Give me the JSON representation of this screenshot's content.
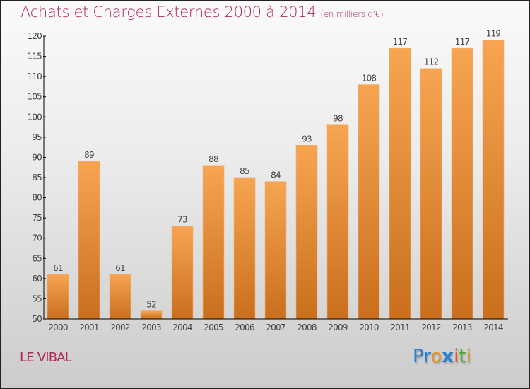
{
  "header": {
    "title": "Achats et Charges Externes 2000 à 2014",
    "unit": "(en milliers d'€)"
  },
  "footer": {
    "commune": "LE VIBAL",
    "logo": {
      "letters": [
        {
          "char": "P",
          "color": "#2a7fd4"
        },
        {
          "char": "r",
          "color": "#2a7fd4"
        },
        {
          "char": "o",
          "color": "#e8901e"
        },
        {
          "char": "x",
          "color": "#2a7fd4"
        },
        {
          "char": "i",
          "color": "#e8502a"
        },
        {
          "char": "t",
          "color": "#4aa83a"
        },
        {
          "char": "i",
          "color": "#e8901e"
        }
      ]
    }
  },
  "colors": {
    "title": "#b0285a",
    "bar_top": "#f7a552",
    "bar_bottom": "#c96f1e",
    "axis": "#000000",
    "label": "#444444"
  },
  "chart_data": {
    "type": "bar",
    "title": "Achats et Charges Externes 2000 à 2014",
    "subtitle": "(en milliers d'€)",
    "xlabel": "",
    "ylabel": "",
    "categories": [
      "2000",
      "2001",
      "2002",
      "2003",
      "2004",
      "2005",
      "2006",
      "2007",
      "2008",
      "2009",
      "2010",
      "2011",
      "2012",
      "2013",
      "2014"
    ],
    "values": [
      61,
      89,
      61,
      52,
      73,
      88,
      85,
      84,
      93,
      98,
      108,
      117,
      112,
      117,
      119
    ],
    "ylim": [
      50,
      120
    ],
    "yticks": [
      50,
      55,
      60,
      65,
      70,
      75,
      80,
      85,
      90,
      95,
      100,
      105,
      110,
      115,
      120
    ],
    "grid": false,
    "legend": "none",
    "data_labels": true
  }
}
